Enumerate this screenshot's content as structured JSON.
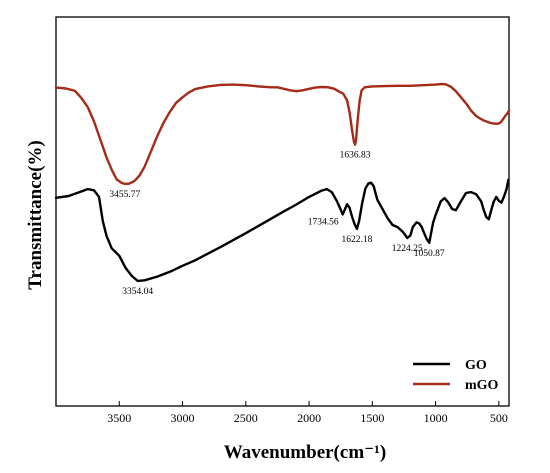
{
  "chart_data": {
    "type": "line",
    "title": "",
    "xlabel": "Wavenumber(cm⁻¹)",
    "ylabel": "Transmittance(%)",
    "xlim": [
      4000,
      420
    ],
    "ylim": [
      0,
      1
    ],
    "x_ticks": [
      3500,
      3000,
      2500,
      2000,
      1500,
      1000,
      500
    ],
    "y_ticks_shown": false,
    "grid": false,
    "legend_position": "bottom-right",
    "series": [
      {
        "name": "GO",
        "color": "#000000",
        "points": [
          [
            4000,
            0.537
          ],
          [
            3900,
            0.543
          ],
          [
            3800,
            0.558
          ],
          [
            3750,
            0.566
          ],
          [
            3700,
            0.562
          ],
          [
            3660,
            0.54
          ],
          [
            3630,
            0.46
          ],
          [
            3600,
            0.41
          ],
          [
            3560,
            0.37
          ],
          [
            3500,
            0.345
          ],
          [
            3450,
            0.305
          ],
          [
            3400,
            0.278
          ],
          [
            3354,
            0.262
          ],
          [
            3300,
            0.264
          ],
          [
            3200,
            0.276
          ],
          [
            3100,
            0.292
          ],
          [
            3000,
            0.312
          ],
          [
            2900,
            0.33
          ],
          [
            2800,
            0.352
          ],
          [
            2700,
            0.374
          ],
          [
            2600,
            0.397
          ],
          [
            2500,
            0.42
          ],
          [
            2400,
            0.444
          ],
          [
            2300,
            0.468
          ],
          [
            2200,
            0.492
          ],
          [
            2100,
            0.515
          ],
          [
            2000,
            0.54
          ],
          [
            1900,
            0.561
          ],
          [
            1860,
            0.566
          ],
          [
            1820,
            0.556
          ],
          [
            1780,
            0.526
          ],
          [
            1750,
            0.498
          ],
          [
            1734,
            0.482
          ],
          [
            1715,
            0.5
          ],
          [
            1700,
            0.516
          ],
          [
            1680,
            0.504
          ],
          [
            1660,
            0.474
          ],
          [
            1640,
            0.45
          ],
          [
            1622,
            0.434
          ],
          [
            1605,
            0.46
          ],
          [
            1580,
            0.52
          ],
          [
            1555,
            0.568
          ],
          [
            1530,
            0.585
          ],
          [
            1510,
            0.587
          ],
          [
            1490,
            0.576
          ],
          [
            1460,
            0.53
          ],
          [
            1420,
            0.5
          ],
          [
            1380,
            0.47
          ],
          [
            1340,
            0.447
          ],
          [
            1300,
            0.44
          ],
          [
            1260,
            0.425
          ],
          [
            1224,
            0.404
          ],
          [
            1200,
            0.412
          ],
          [
            1180,
            0.44
          ],
          [
            1150,
            0.456
          ],
          [
            1130,
            0.452
          ],
          [
            1110,
            0.44
          ],
          [
            1090,
            0.42
          ],
          [
            1070,
            0.4
          ],
          [
            1050,
            0.388
          ],
          [
            1040,
            0.41
          ],
          [
            1020,
            0.455
          ],
          [
            1000,
            0.48
          ],
          [
            960,
            0.525
          ],
          [
            930,
            0.536
          ],
          [
            900,
            0.522
          ],
          [
            870,
            0.5
          ],
          [
            840,
            0.496
          ],
          [
            800,
            0.525
          ],
          [
            760,
            0.553
          ],
          [
            720,
            0.556
          ],
          [
            680,
            0.549
          ],
          [
            640,
            0.525
          ],
          [
            620,
            0.497
          ],
          [
            600,
            0.474
          ],
          [
            580,
            0.466
          ],
          [
            560,
            0.497
          ],
          [
            540,
            0.525
          ],
          [
            520,
            0.54
          ],
          [
            500,
            0.527
          ],
          [
            480,
            0.521
          ],
          [
            460,
            0.54
          ],
          [
            440,
            0.566
          ],
          [
            425,
            0.597
          ]
        ]
      },
      {
        "name": "mGO",
        "color": "#a52a18",
        "points": [
          [
            4000,
            0.902
          ],
          [
            3920,
            0.899
          ],
          [
            3850,
            0.891
          ],
          [
            3800,
            0.868
          ],
          [
            3750,
            0.838
          ],
          [
            3700,
            0.79
          ],
          [
            3650,
            0.73
          ],
          [
            3600,
            0.67
          ],
          [
            3560,
            0.63
          ],
          [
            3520,
            0.598
          ],
          [
            3480,
            0.586
          ],
          [
            3455,
            0.583
          ],
          [
            3420,
            0.584
          ],
          [
            3380,
            0.593
          ],
          [
            3340,
            0.611
          ],
          [
            3300,
            0.64
          ],
          [
            3250,
            0.69
          ],
          [
            3200,
            0.741
          ],
          [
            3150,
            0.786
          ],
          [
            3100,
            0.822
          ],
          [
            3050,
            0.852
          ],
          [
            3000,
            0.87
          ],
          [
            2950,
            0.886
          ],
          [
            2900,
            0.897
          ],
          [
            2800,
            0.906
          ],
          [
            2700,
            0.911
          ],
          [
            2600,
            0.912
          ],
          [
            2500,
            0.91
          ],
          [
            2400,
            0.906
          ],
          [
            2300,
            0.903
          ],
          [
            2250,
            0.903
          ],
          [
            2200,
            0.898
          ],
          [
            2150,
            0.893
          ],
          [
            2100,
            0.89
          ],
          [
            2050,
            0.893
          ],
          [
            2000,
            0.898
          ],
          [
            1950,
            0.902
          ],
          [
            1900,
            0.904
          ],
          [
            1850,
            0.903
          ],
          [
            1800,
            0.898
          ],
          [
            1760,
            0.888
          ],
          [
            1730,
            0.882
          ],
          [
            1700,
            0.86
          ],
          [
            1680,
            0.82
          ],
          [
            1660,
            0.76
          ],
          [
            1645,
            0.722
          ],
          [
            1636,
            0.713
          ],
          [
            1628,
            0.73
          ],
          [
            1615,
            0.8
          ],
          [
            1600,
            0.86
          ],
          [
            1585,
            0.893
          ],
          [
            1560,
            0.903
          ],
          [
            1500,
            0.906
          ],
          [
            1400,
            0.907
          ],
          [
            1300,
            0.908
          ],
          [
            1200,
            0.908
          ],
          [
            1100,
            0.91
          ],
          [
            1000,
            0.912
          ],
          [
            950,
            0.914
          ],
          [
            920,
            0.913
          ],
          [
            880,
            0.905
          ],
          [
            840,
            0.89
          ],
          [
            800,
            0.87
          ],
          [
            760,
            0.85
          ],
          [
            720,
            0.826
          ],
          [
            680,
            0.808
          ],
          [
            650,
            0.8
          ],
          [
            620,
            0.793
          ],
          [
            600,
            0.79
          ],
          [
            570,
            0.785
          ],
          [
            540,
            0.783
          ],
          [
            510,
            0.782
          ],
          [
            490,
            0.785
          ],
          [
            470,
            0.796
          ],
          [
            450,
            0.808
          ],
          [
            430,
            0.818
          ],
          [
            420,
            0.826
          ]
        ]
      }
    ],
    "annotations": [
      {
        "text": "3455.77",
        "series": "mGO",
        "x": 3455.77,
        "y": 0.583,
        "anchor": "below"
      },
      {
        "text": "1636.83",
        "series": "mGO",
        "x": 1636.83,
        "y": 0.713,
        "anchor": "below"
      },
      {
        "text": "3354.04",
        "series": "GO",
        "x": 3354.04,
        "y": 0.262,
        "anchor": "below"
      },
      {
        "text": "1734.56",
        "series": "GO",
        "x": 1734.56,
        "y": 0.482,
        "anchor": "left"
      },
      {
        "text": "1622.18",
        "series": "GO",
        "x": 1622.18,
        "y": 0.434,
        "anchor": "below"
      },
      {
        "text": "1224.25",
        "series": "GO",
        "x": 1224.25,
        "y": 0.404,
        "anchor": "below"
      },
      {
        "text": "1050.87",
        "series": "GO",
        "x": 1050.87,
        "y": 0.388,
        "anchor": "below"
      }
    ]
  }
}
